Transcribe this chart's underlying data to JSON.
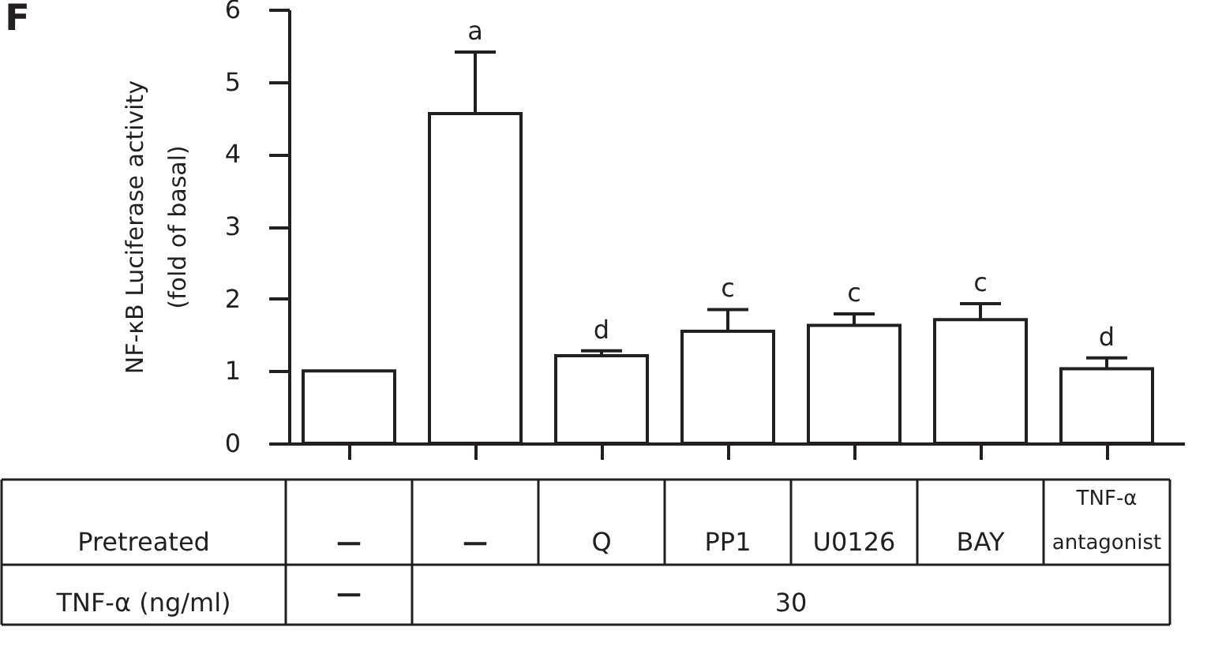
{
  "chart_data": {
    "type": "bar",
    "title": "F",
    "ylabel": "NF-κB Luciferase activity\n(fold of basal)",
    "xlabel": "Pretreated",
    "categories": [
      "—",
      "—",
      "Q",
      "PP1",
      "U0126",
      "BAY",
      "TNF-α antagonist"
    ],
    "values": [
      1.0,
      4.56,
      1.21,
      1.55,
      1.63,
      1.71,
      1.03
    ],
    "color": "#ffffff",
    "errors": [
      null,
      [
        4.56,
        5.41
      ],
      [
        1.21,
        1.28
      ],
      [
        1.55,
        1.85
      ],
      [
        1.63,
        1.79
      ],
      [
        1.71,
        1.93
      ],
      [
        1.03,
        1.18
      ]
    ],
    "value_labels": [
      null,
      "a",
      "d",
      "c",
      "c",
      "c",
      "d"
    ],
    "ylim": [
      0,
      6
    ],
    "yticks": [
      0,
      1,
      2,
      3,
      4,
      5,
      6
    ],
    "annotations": [
      "TNF-α (ng/ml)",
      "—",
      "30"
    ]
  }
}
